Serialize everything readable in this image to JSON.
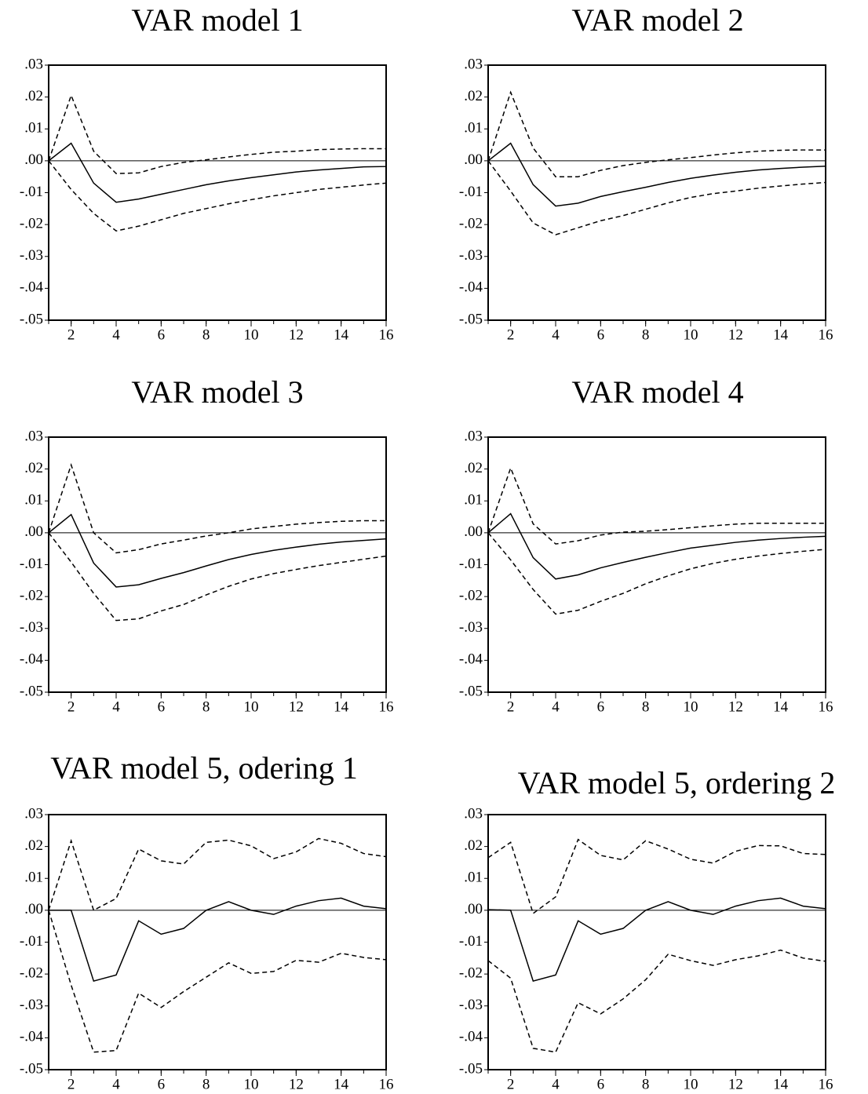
{
  "chart_data": [
    {
      "type": "line",
      "title": "VAR model 1",
      "x": [
        1,
        2,
        3,
        4,
        5,
        6,
        7,
        8,
        9,
        10,
        11,
        12,
        13,
        14,
        15,
        16
      ],
      "xlim": [
        1,
        16
      ],
      "xticks": [
        2,
        4,
        6,
        8,
        10,
        12,
        14,
        16
      ],
      "ylim": [
        -0.05,
        0.03
      ],
      "yticks": [
        {
          "value": 0.03,
          "label": ".03"
        },
        {
          "value": 0.02,
          "label": ".02"
        },
        {
          "value": 0.01,
          "label": ".01"
        },
        {
          "value": 0,
          "label": ".00"
        },
        {
          "value": -0.01,
          "label": "-.01"
        },
        {
          "value": -0.02,
          "label": "-.02"
        },
        {
          "value": -0.03,
          "label": "-.03"
        },
        {
          "value": -0.04,
          "label": "-.04"
        },
        {
          "value": -0.05,
          "label": "-.05"
        }
      ],
      "zero_line": true,
      "series": [
        {
          "color": "#000000",
          "dashed": false,
          "values": [
            0,
            0.0055,
            -0.007,
            -0.013,
            -0.012,
            -0.0105,
            -0.009,
            -0.0075,
            -0.0063,
            -0.0053,
            -0.0044,
            -0.0035,
            -0.0029,
            -0.0024,
            -0.0019,
            -0.0018
          ]
        },
        {
          "color": "#000000",
          "dashed": true,
          "values": [
            0,
            0.0205,
            0.003,
            -0.004,
            -0.0038,
            -0.0018,
            -0.0005,
            0.0003,
            0.0012,
            0.002,
            0.0027,
            0.003,
            0.0035,
            0.0037,
            0.0038,
            0.0038
          ]
        },
        {
          "color": "#000000",
          "dashed": true,
          "values": [
            0,
            -0.009,
            -0.0165,
            -0.022,
            -0.0205,
            -0.0185,
            -0.0165,
            -0.015,
            -0.0135,
            -0.0122,
            -0.011,
            -0.01,
            -0.009,
            -0.0083,
            -0.0076,
            -0.007
          ]
        }
      ]
    },
    {
      "type": "line",
      "title": "VAR model 2",
      "x": [
        1,
        2,
        3,
        4,
        5,
        6,
        7,
        8,
        9,
        10,
        11,
        12,
        13,
        14,
        15,
        16
      ],
      "xlim": [
        1,
        16
      ],
      "xticks": [
        2,
        4,
        6,
        8,
        10,
        12,
        14,
        16
      ],
      "ylim": [
        -0.05,
        0.03
      ],
      "yticks": [
        {
          "value": 0.03,
          "label": ".03"
        },
        {
          "value": 0.02,
          "label": ".02"
        },
        {
          "value": 0.01,
          "label": ".01"
        },
        {
          "value": 0,
          "label": ".00"
        },
        {
          "value": -0.01,
          "label": "-.01"
        },
        {
          "value": -0.02,
          "label": "-.02"
        },
        {
          "value": -0.03,
          "label": "-.03"
        },
        {
          "value": -0.04,
          "label": "-.04"
        },
        {
          "value": -0.05,
          "label": "-.05"
        }
      ],
      "zero_line": true,
      "series": [
        {
          "color": "#000000",
          "dashed": false,
          "values": [
            0,
            0.0055,
            -0.0075,
            -0.0142,
            -0.0133,
            -0.0112,
            -0.0097,
            -0.0083,
            -0.0068,
            -0.0055,
            -0.0045,
            -0.0036,
            -0.0029,
            -0.0024,
            -0.002,
            -0.0017
          ]
        },
        {
          "color": "#000000",
          "dashed": true,
          "values": [
            0,
            0.0215,
            0.004,
            -0.005,
            -0.005,
            -0.003,
            -0.0015,
            -0.0005,
            0.0003,
            0.001,
            0.0018,
            0.0025,
            0.003,
            0.0033,
            0.0034,
            0.0034
          ]
        },
        {
          "color": "#000000",
          "dashed": true,
          "values": [
            0,
            -0.0095,
            -0.0195,
            -0.0232,
            -0.021,
            -0.0188,
            -0.0172,
            -0.0152,
            -0.0132,
            -0.0115,
            -0.0103,
            -0.0095,
            -0.0086,
            -0.0079,
            -0.0073,
            -0.0068
          ]
        }
      ]
    },
    {
      "type": "line",
      "title": "VAR model 3",
      "x": [
        1,
        2,
        3,
        4,
        5,
        6,
        7,
        8,
        9,
        10,
        11,
        12,
        13,
        14,
        15,
        16
      ],
      "xlim": [
        1,
        16
      ],
      "xticks": [
        2,
        4,
        6,
        8,
        10,
        12,
        14,
        16
      ],
      "ylim": [
        -0.05,
        0.03
      ],
      "yticks": [
        {
          "value": 0.03,
          "label": ".03"
        },
        {
          "value": 0.02,
          "label": ".02"
        },
        {
          "value": 0.01,
          "label": ".01"
        },
        {
          "value": 0,
          "label": ".00"
        },
        {
          "value": -0.01,
          "label": "-.01"
        },
        {
          "value": -0.02,
          "label": "-.02"
        },
        {
          "value": -0.03,
          "label": "-.03"
        },
        {
          "value": -0.04,
          "label": "-.04"
        },
        {
          "value": -0.05,
          "label": "-.05"
        }
      ],
      "zero_line": true,
      "series": [
        {
          "color": "#000000",
          "dashed": false,
          "values": [
            0,
            0.0057,
            -0.0095,
            -0.017,
            -0.0163,
            -0.0143,
            -0.0125,
            -0.0104,
            -0.0084,
            -0.0068,
            -0.0055,
            -0.0045,
            -0.0036,
            -0.0029,
            -0.0024,
            -0.0019
          ]
        },
        {
          "color": "#000000",
          "dashed": true,
          "values": [
            0,
            0.0213,
            0,
            -0.0063,
            -0.0053,
            -0.0035,
            -0.0023,
            -0.001,
            0,
            0.0012,
            0.002,
            0.0027,
            0.0032,
            0.0036,
            0.0038,
            0.0038
          ]
        },
        {
          "color": "#000000",
          "dashed": true,
          "values": [
            0,
            -0.0092,
            -0.019,
            -0.0275,
            -0.027,
            -0.0245,
            -0.0225,
            -0.0195,
            -0.0168,
            -0.0145,
            -0.0128,
            -0.0115,
            -0.0103,
            -0.0093,
            -0.0083,
            -0.0073
          ]
        }
      ]
    },
    {
      "type": "line",
      "title": "VAR model 4",
      "x": [
        1,
        2,
        3,
        4,
        5,
        6,
        7,
        8,
        9,
        10,
        11,
        12,
        13,
        14,
        15,
        16
      ],
      "xlim": [
        1,
        16
      ],
      "xticks": [
        2,
        4,
        6,
        8,
        10,
        12,
        14,
        16
      ],
      "ylim": [
        -0.05,
        0.03
      ],
      "yticks": [
        {
          "value": 0.03,
          "label": ".03"
        },
        {
          "value": 0.02,
          "label": ".02"
        },
        {
          "value": 0.01,
          "label": ".01"
        },
        {
          "value": 0,
          "label": ".00"
        },
        {
          "value": -0.01,
          "label": "-.01"
        },
        {
          "value": -0.02,
          "label": "-.02"
        },
        {
          "value": -0.03,
          "label": "-.03"
        },
        {
          "value": -0.04,
          "label": "-.04"
        },
        {
          "value": -0.05,
          "label": "-.05"
        }
      ],
      "zero_line": true,
      "series": [
        {
          "color": "#000000",
          "dashed": false,
          "values": [
            0,
            0.006,
            -0.0078,
            -0.0145,
            -0.0132,
            -0.011,
            -0.0093,
            -0.0077,
            -0.0062,
            -0.0048,
            -0.0039,
            -0.003,
            -0.0023,
            -0.0018,
            -0.0014,
            -0.0011
          ]
        },
        {
          "color": "#000000",
          "dashed": true,
          "values": [
            0,
            0.0203,
            0.0028,
            -0.0035,
            -0.0025,
            -0.0007,
            0.0002,
            0.0005,
            0.001,
            0.0016,
            0.0022,
            0.0027,
            0.003,
            0.003,
            0.003,
            0.003
          ]
        },
        {
          "color": "#000000",
          "dashed": true,
          "values": [
            0,
            -0.0085,
            -0.0178,
            -0.0255,
            -0.0243,
            -0.0215,
            -0.019,
            -0.016,
            -0.0135,
            -0.0113,
            -0.0096,
            -0.0083,
            -0.0073,
            -0.0065,
            -0.0058,
            -0.0052
          ]
        }
      ]
    },
    {
      "type": "line",
      "title": "VAR model 5, odering 1",
      "x": [
        1,
        2,
        3,
        4,
        5,
        6,
        7,
        8,
        9,
        10,
        11,
        12,
        13,
        14,
        15,
        16
      ],
      "xlim": [
        1,
        16
      ],
      "xticks": [
        2,
        4,
        6,
        8,
        10,
        12,
        14,
        16
      ],
      "ylim": [
        -0.05,
        0.03
      ],
      "yticks": [
        {
          "value": 0.03,
          "label": ".03"
        },
        {
          "value": 0.02,
          "label": ".02"
        },
        {
          "value": 0.01,
          "label": ".01"
        },
        {
          "value": 0,
          "label": ".00"
        },
        {
          "value": -0.01,
          "label": "-.01"
        },
        {
          "value": -0.02,
          "label": "-.02"
        },
        {
          "value": -0.03,
          "label": "-.03"
        },
        {
          "value": -0.04,
          "label": "-.04"
        },
        {
          "value": -0.05,
          "label": "-.05"
        }
      ],
      "zero_line": true,
      "series": [
        {
          "color": "#000000",
          "dashed": false,
          "values": [
            0,
            0,
            -0.0222,
            -0.0203,
            -0.0033,
            -0.0075,
            -0.0057,
            0,
            0.0027,
            0,
            -0.0013,
            0.0013,
            0.003,
            0.0038,
            0.0013,
            0.0005
          ]
        },
        {
          "color": "#000000",
          "dashed": true,
          "values": [
            0,
            0.0218,
            0,
            0.0037,
            0.0192,
            0.0155,
            0.0145,
            0.0213,
            0.022,
            0.0202,
            0.0162,
            0.0183,
            0.0225,
            0.021,
            0.0178,
            0.0168
          ]
        },
        {
          "color": "#000000",
          "dashed": true,
          "values": [
            0,
            -0.0235,
            -0.0445,
            -0.044,
            -0.026,
            -0.0305,
            -0.0255,
            -0.021,
            -0.0165,
            -0.0198,
            -0.0192,
            -0.0157,
            -0.0163,
            -0.0135,
            -0.0148,
            -0.0155
          ]
        }
      ]
    },
    {
      "type": "line",
      "title": "VAR model 5, ordering 2",
      "x": [
        1,
        2,
        3,
        4,
        5,
        6,
        7,
        8,
        9,
        10,
        11,
        12,
        13,
        14,
        15,
        16
      ],
      "xlim": [
        1,
        16
      ],
      "xticks": [
        2,
        4,
        6,
        8,
        10,
        12,
        14,
        16
      ],
      "ylim": [
        -0.05,
        0.03
      ],
      "yticks": [
        {
          "value": 0.03,
          "label": ".03"
        },
        {
          "value": 0.02,
          "label": ".02"
        },
        {
          "value": 0.01,
          "label": ".01"
        },
        {
          "value": 0,
          "label": ".00"
        },
        {
          "value": -0.01,
          "label": "-.01"
        },
        {
          "value": -0.02,
          "label": "-.02"
        },
        {
          "value": -0.03,
          "label": "-.03"
        },
        {
          "value": -0.04,
          "label": "-.04"
        },
        {
          "value": -0.05,
          "label": "-.05"
        }
      ],
      "zero_line": true,
      "series": [
        {
          "color": "#000000",
          "dashed": false,
          "values": [
            0.0002,
            0,
            -0.0222,
            -0.0203,
            -0.0033,
            -0.0075,
            -0.0057,
            0,
            0.0027,
            0,
            -0.0013,
            0.0013,
            0.003,
            0.0038,
            0.0013,
            0.0005
          ]
        },
        {
          "color": "#000000",
          "dashed": true,
          "values": [
            0.0165,
            0.0213,
            -0.001,
            0.0042,
            0.0222,
            0.0172,
            0.0158,
            0.0218,
            0.0192,
            0.016,
            0.0148,
            0.0185,
            0.0203,
            0.0202,
            0.0178,
            0.0175
          ]
        },
        {
          "color": "#000000",
          "dashed": true,
          "values": [
            -0.0158,
            -0.0213,
            -0.0433,
            -0.0445,
            -0.029,
            -0.0325,
            -0.0278,
            -0.0218,
            -0.0138,
            -0.0158,
            -0.0173,
            -0.0155,
            -0.0143,
            -0.0125,
            -0.015,
            -0.016
          ]
        }
      ]
    }
  ]
}
